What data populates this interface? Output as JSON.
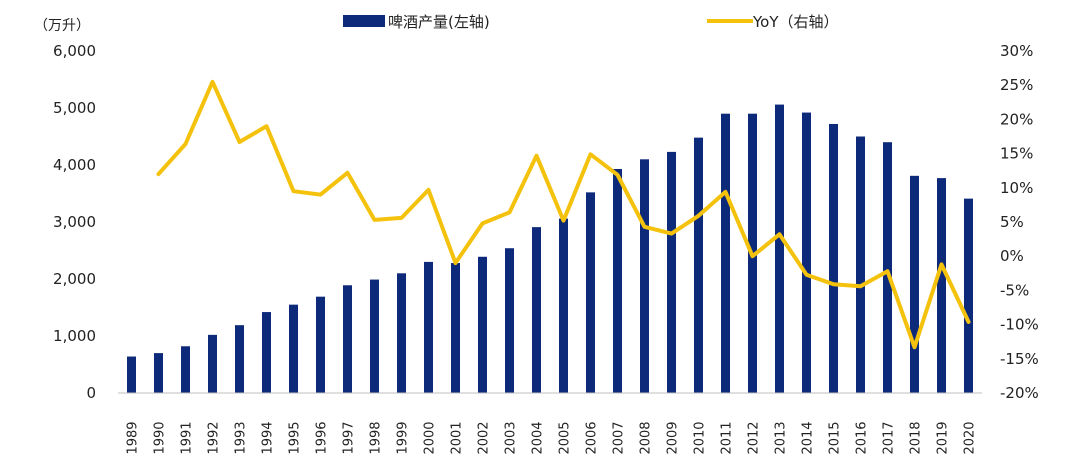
{
  "chart_data": {
    "type": "bar+line",
    "categories": [
      "1989",
      "1990",
      "1991",
      "1992",
      "1993",
      "1994",
      "1995",
      "1996",
      "1997",
      "1998",
      "1999",
      "2000",
      "2001",
      "2002",
      "2003",
      "2004",
      "2005",
      "2006",
      "2007",
      "2008",
      "2009",
      "2010",
      "2011",
      "2012",
      "2013",
      "2014",
      "2015",
      "2016",
      "2017",
      "2018",
      "2019",
      "2020"
    ],
    "series": [
      {
        "name": "啤酒产量(左轴)",
        "type": "bar",
        "axis": "left",
        "color": "#0d2a7a",
        "values": [
          640,
          700,
          820,
          1020,
          1190,
          1420,
          1550,
          1690,
          1890,
          1990,
          2100,
          2300,
          2280,
          2390,
          2540,
          2910,
          3060,
          3520,
          3930,
          4100,
          4230,
          4480,
          4900,
          4900,
          5060,
          4920,
          4720,
          4500,
          4400,
          3810,
          3770,
          3410
        ]
      },
      {
        "name": "YoY（右轴）",
        "type": "line",
        "axis": "right",
        "color": "#f4c20d",
        "values": [
          null,
          12.0,
          16.4,
          25.5,
          16.7,
          19.0,
          9.5,
          9.0,
          12.2,
          5.3,
          5.6,
          9.7,
          -1.0,
          4.8,
          6.4,
          14.7,
          5.2,
          14.9,
          11.9,
          4.3,
          3.3,
          5.9,
          9.4,
          0.0,
          3.2,
          -2.7,
          -4.1,
          -4.4,
          -2.2,
          -13.3,
          -1.2,
          -9.6
        ]
      }
    ],
    "y_left": {
      "unit_label": "（万升）",
      "ylim": [
        0,
        6000
      ],
      "ticks": [
        0,
        1000,
        2000,
        3000,
        4000,
        5000,
        6000
      ],
      "tick_labels": [
        "0",
        "1,000",
        "2,000",
        "3,000",
        "4,000",
        "5,000",
        "6,000"
      ]
    },
    "y_right": {
      "ylim": [
        -20,
        30
      ],
      "ticks": [
        -20,
        -15,
        -10,
        -5,
        0,
        5,
        10,
        15,
        20,
        25,
        30
      ],
      "tick_labels": [
        "-20%",
        "-15%",
        "-10%",
        "-5%",
        "0%",
        "5%",
        "10%",
        "15%",
        "20%",
        "25%",
        "30%"
      ]
    },
    "legend": {
      "position": "top-center",
      "items": [
        "啤酒产量(左轴)",
        "YoY（右轴）"
      ]
    },
    "title": "",
    "grid": false
  }
}
